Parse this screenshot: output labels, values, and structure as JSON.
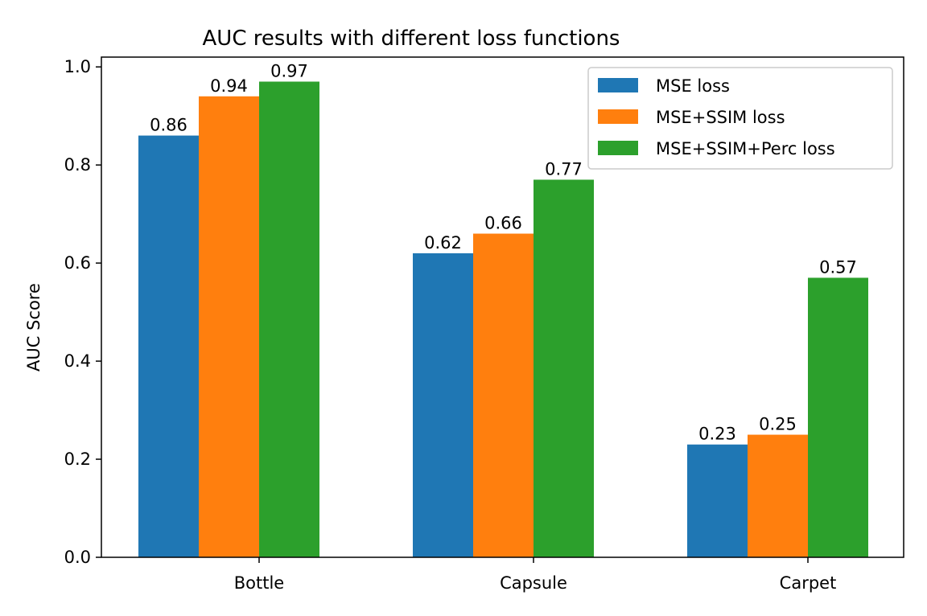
{
  "chart_data": {
    "type": "bar",
    "title": "AUC results with different loss functions",
    "xlabel": "",
    "ylabel": "AUC Score",
    "categories": [
      "Bottle",
      "Capsule",
      "Carpet"
    ],
    "ylim": [
      0,
      1.02
    ],
    "yticks": [
      "0.0",
      "0.2",
      "0.4",
      "0.6",
      "0.8",
      "1.0"
    ],
    "grid": false,
    "legend_position": "top-right",
    "series": [
      {
        "name": "MSE loss",
        "color": "#1f77b4",
        "values": [
          0.86,
          0.62,
          0.23
        ],
        "labels": [
          "0.86",
          "0.62",
          "0.23"
        ]
      },
      {
        "name": "MSE+SSIM loss",
        "color": "#ff7f0e",
        "values": [
          0.94,
          0.66,
          0.25
        ],
        "labels": [
          "0.94",
          "0.66",
          "0.25"
        ]
      },
      {
        "name": "MSE+SSIM+Perc loss",
        "color": "#2ca02c",
        "values": [
          0.97,
          0.77,
          0.57
        ],
        "labels": [
          "0.97",
          "0.77",
          "0.57"
        ]
      }
    ]
  }
}
